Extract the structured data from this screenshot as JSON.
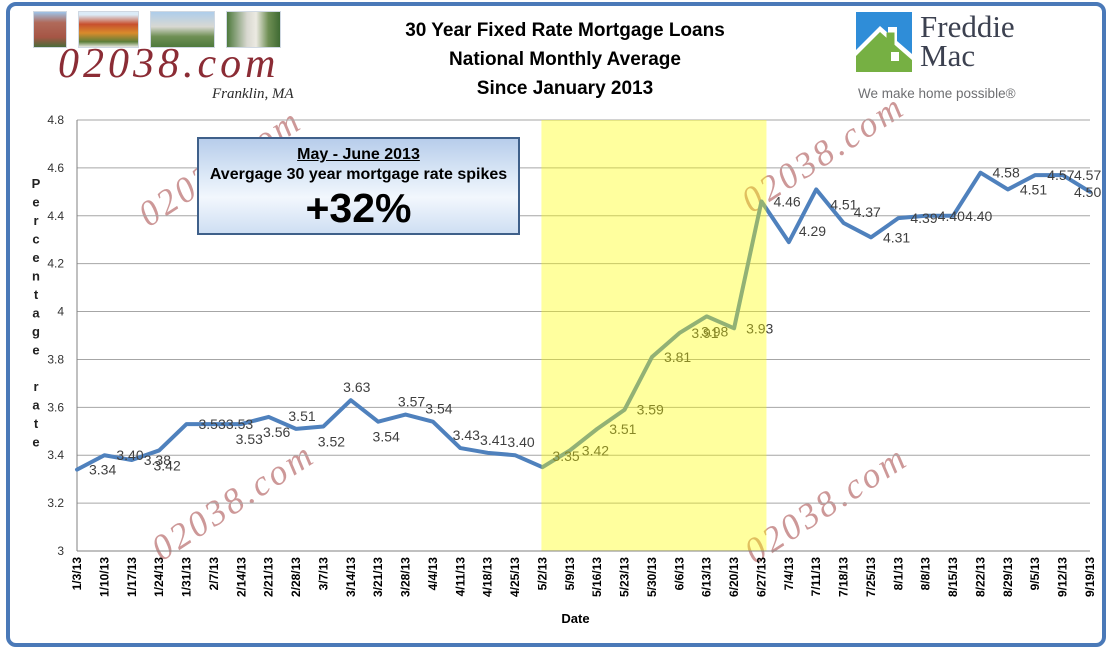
{
  "window": {
    "frame_color": "#4a79b8"
  },
  "header": {
    "site_logo": {
      "text": "02038.com",
      "subtext": "Franklin, MA"
    },
    "title_lines": [
      "30 Year Fixed Rate Mortgage Loans",
      "National Monthly Average",
      "Since January 2013"
    ],
    "brand": {
      "name_line1": "Freddie",
      "name_line2": "Mac",
      "tagline": "We make home possible®"
    }
  },
  "callout": {
    "line1": "May - June 2013",
    "line2": "Avergage 30 year mortgage rate spikes",
    "line3": "+32%"
  },
  "watermark": {
    "text": "02038.com",
    "color": "#a84e4e"
  },
  "chart_data": {
    "type": "line",
    "x": [
      "1/3/13",
      "1/10/13",
      "1/17/13",
      "1/24/13",
      "1/31/13",
      "2/7/13",
      "2/14/13",
      "2/21/13",
      "2/28/13",
      "3/7/13",
      "3/14/13",
      "3/21/13",
      "3/28/13",
      "4/4/13",
      "4/11/13",
      "4/18/13",
      "4/25/13",
      "5/2/13",
      "5/9/13",
      "5/16/13",
      "5/23/13",
      "5/30/13",
      "6/6/13",
      "6/13/13",
      "6/20/13",
      "6/27/13",
      "7/4/13",
      "7/11/13",
      "7/18/13",
      "7/25/13",
      "8/1/13",
      "8/8/13",
      "8/15/13",
      "8/22/13",
      "8/29/13",
      "9/5/13",
      "9/12/13",
      "9/19/13"
    ],
    "series": [
      {
        "name": "30 year fixed mortgage rate",
        "values": [
          3.34,
          3.4,
          3.38,
          3.42,
          3.53,
          3.53,
          3.53,
          3.56,
          3.51,
          3.52,
          3.63,
          3.54,
          3.57,
          3.54,
          3.43,
          3.41,
          3.4,
          3.35,
          3.42,
          3.51,
          3.59,
          3.81,
          3.91,
          3.98,
          3.93,
          4.46,
          4.29,
          4.51,
          4.37,
          4.31,
          4.39,
          4.4,
          4.4,
          4.58,
          4.51,
          4.57,
          4.57,
          4.5
        ]
      }
    ],
    "xlabel": "Date",
    "ylabel": "Percentage rate",
    "ylim": [
      3.0,
      4.8
    ],
    "ytick_step": 0.2,
    "yticks": [
      "4.8",
      "4.6",
      "4.4",
      "4.2",
      "4",
      "3.8",
      "3.6",
      "3.4",
      "3.2",
      "3"
    ],
    "grid": true,
    "legend": "none",
    "line_color": "#4f81bd",
    "label_color": "#3f3f3f",
    "highlight_band": {
      "from": "5/2/13",
      "to": "6/27/13",
      "color": "rgba(255,255,0,0.38)"
    },
    "label_pos": [
      "level",
      "level",
      "level",
      "below",
      "level",
      "level",
      "below",
      "below",
      "above",
      "below",
      "above",
      "below",
      "above",
      "above",
      "above",
      "above",
      "above",
      "aboveright",
      "level",
      "level",
      "level",
      "level",
      "level",
      "below",
      "level",
      "level",
      "aboveright",
      "belowright",
      "aboveright",
      "level",
      "level",
      "level",
      "level",
      "level",
      "level",
      "level",
      "level",
      "level"
    ]
  }
}
